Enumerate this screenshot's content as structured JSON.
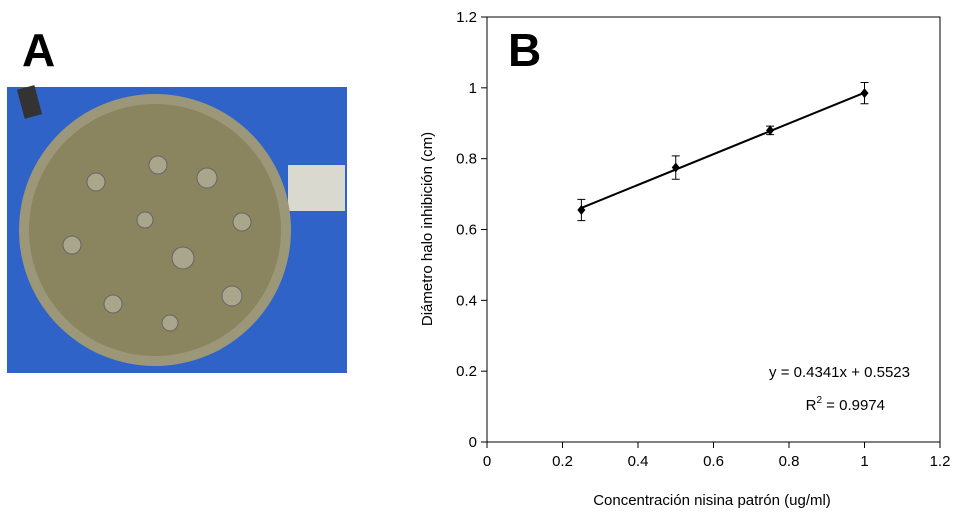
{
  "panel_labels": [
    "A",
    "B"
  ],
  "chart_data": {
    "type": "scatter",
    "xlabel": "Concentración nisina patrón (ug/ml)",
    "ylabel": "Diámetro halo inhibición (cm)",
    "series": [
      {
        "x": [
          0.25,
          0.5,
          0.75,
          1
        ],
        "values": [
          0.655,
          0.775,
          0.88,
          0.985
        ],
        "errors": [
          0.03,
          0.033,
          0.012,
          0.03
        ],
        "color": "#000000"
      }
    ],
    "trendline": {
      "slope": 0.4341,
      "intercept": 0.5523
    },
    "annotations": [
      "y = 0.4341x + 0.5523"
    ],
    "r2": {
      "base": "R",
      "sup": "2",
      "rest": " = 0.9974"
    },
    "xlim": [
      0,
      1.2
    ],
    "xticks": [
      0,
      0.2,
      0.4,
      0.6,
      0.8,
      1,
      1.2
    ],
    "ylim": [
      0,
      1.2
    ],
    "yticks": [
      0,
      0.2,
      0.4,
      0.6,
      0.8,
      1,
      1.2
    ]
  }
}
